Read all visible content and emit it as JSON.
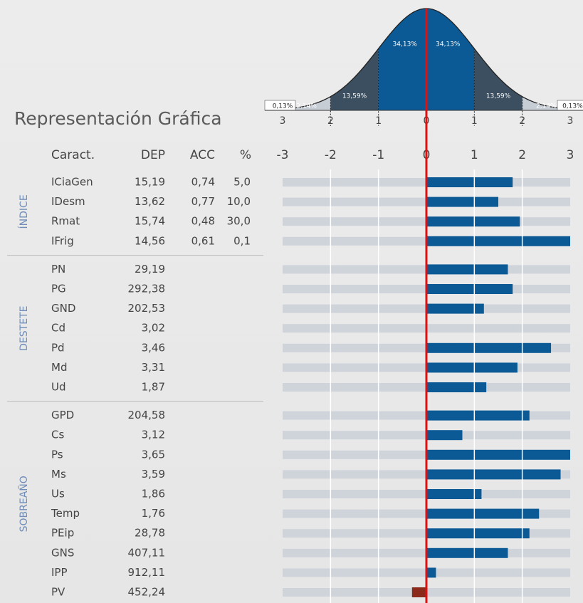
{
  "chart_data": {
    "type": "bar",
    "title": "Representación Gráfica",
    "columns": [
      "Caract.",
      "DEP",
      "ACC",
      "%"
    ],
    "xlim": [
      -3,
      3
    ],
    "xticks": [
      -3,
      -2,
      -1,
      0,
      1,
      2,
      3
    ],
    "grid": true,
    "bar_color": "#0b5a96",
    "negative_color": "#8b2a1a",
    "track_color": "#cfd4db",
    "zero_line_color": "#e01010",
    "curve": {
      "region_labels": [
        "0,13%",
        "2,14%",
        "13,59%",
        "34,13%",
        "34,13%",
        "13,59%",
        "2,14%",
        "0,13%"
      ],
      "ticks": [
        {
          "value": -3,
          "label": "3"
        },
        {
          "value": -2,
          "label": "2"
        },
        {
          "value": -1,
          "label": "1"
        },
        0,
        1,
        2,
        3
      ],
      "colors": [
        "#c6cdd5",
        "#3b4f60",
        "#0b5a96"
      ]
    },
    "groups": [
      {
        "name": "ÍNDICE",
        "rows": [
          {
            "name": "ICiaGen",
            "dep": "15,19",
            "acc": "0,74",
            "pct": "5,0",
            "value": 1.8
          },
          {
            "name": "IDesm",
            "dep": "13,62",
            "acc": "0,77",
            "pct": "10,0",
            "value": 1.5
          },
          {
            "name": "Rmat",
            "dep": "15,74",
            "acc": "0,48",
            "pct": "30,0",
            "value": 1.95
          },
          {
            "name": "IFrig",
            "dep": "14,56",
            "acc": "0,61",
            "pct": "0,1",
            "value": 3
          }
        ]
      },
      {
        "name": "DESTETE",
        "rows": [
          {
            "name": "PN",
            "dep": "29,19",
            "value": 1.7
          },
          {
            "name": "PG",
            "dep": "292,38",
            "value": 1.8
          },
          {
            "name": "GND",
            "dep": "202,53",
            "value": 1.2
          },
          {
            "name": "Cd",
            "dep": "3,02",
            "value": 0
          },
          {
            "name": "Pd",
            "dep": "3,46",
            "value": 2.6
          },
          {
            "name": "Md",
            "dep": "3,31",
            "value": 1.9
          },
          {
            "name": "Ud",
            "dep": "1,87",
            "value": 1.25
          }
        ]
      },
      {
        "name": "SOBREAÑO",
        "rows": [
          {
            "name": "GPD",
            "dep": "204,58",
            "value": 2.15
          },
          {
            "name": "Cs",
            "dep": "3,12",
            "value": 0.75
          },
          {
            "name": "Ps",
            "dep": "3,65",
            "value": 3
          },
          {
            "name": "Ms",
            "dep": "3,59",
            "value": 2.8
          },
          {
            "name": "Us",
            "dep": "1,86",
            "value": 1.15
          },
          {
            "name": "Temp",
            "dep": "1,76",
            "value": 2.35
          },
          {
            "name": "PEip",
            "dep": "28,78",
            "value": 2.15
          },
          {
            "name": "GNS",
            "dep": "407,11",
            "value": 1.7
          },
          {
            "name": "IPP",
            "dep": "912,11",
            "value": 0.2
          },
          {
            "name": "PV",
            "dep": "452,24",
            "value": -0.3
          }
        ]
      }
    ]
  }
}
